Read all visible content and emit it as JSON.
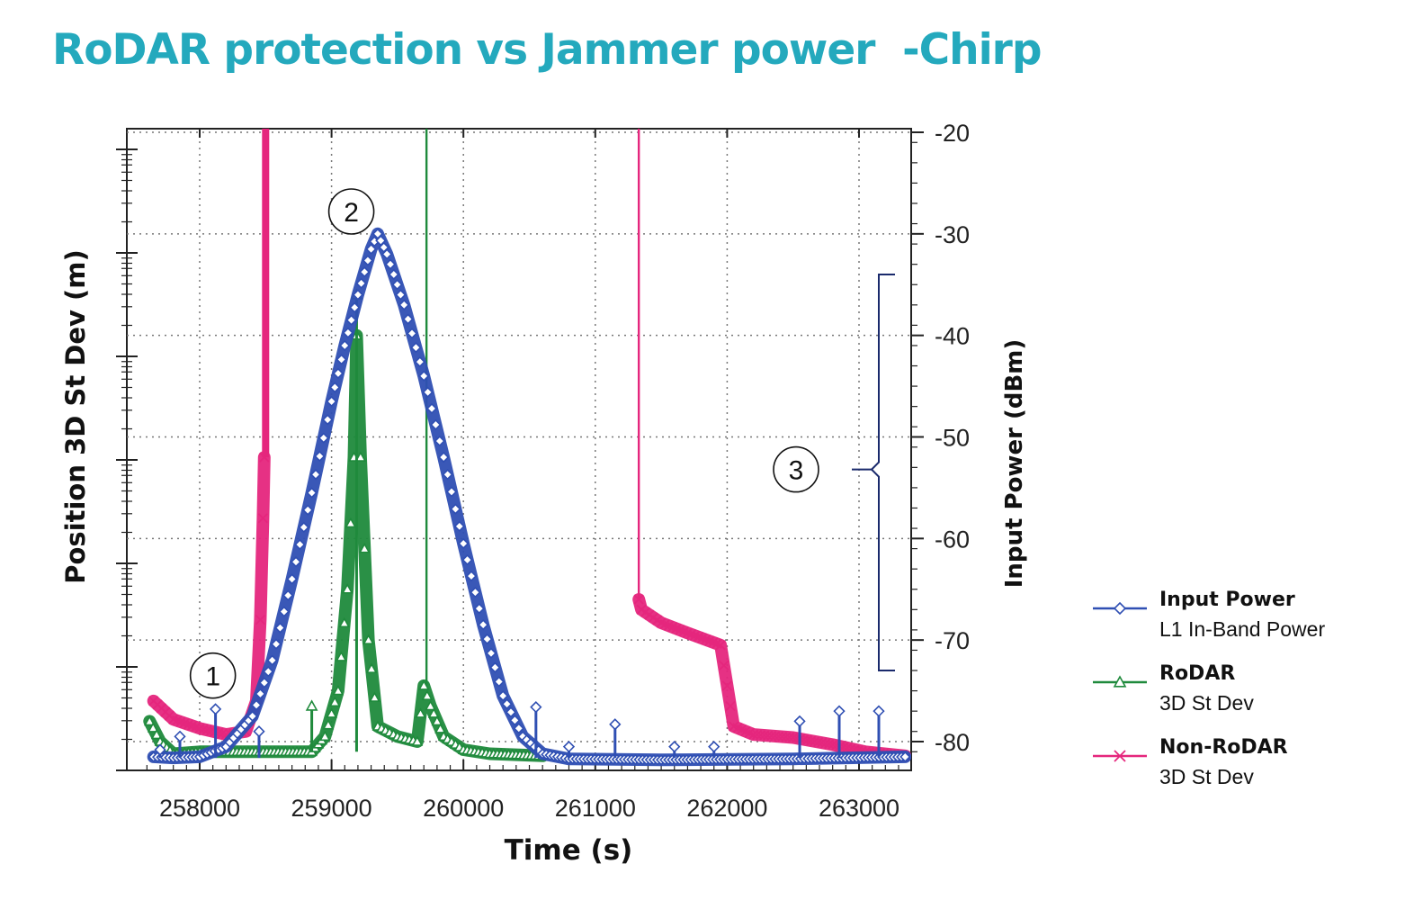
{
  "title": "RoDAR protection vs Jammer power  -Chirp",
  "colors": {
    "title": "#24a9bd",
    "input_power": "#2f4fb3",
    "rodar": "#1f8a3c",
    "non_rodar": "#e5267d",
    "annotation": "#1a2a6c"
  },
  "chart_data": {
    "type": "line",
    "xlabel": "Time (s)",
    "ylabel_left": "Position 3D St Dev (m)",
    "ylabel_right": "Input Power (dBm)",
    "xlim": [
      257600,
      263400
    ],
    "ylim_right": [
      -82,
      -20
    ],
    "x_ticks": [
      "258000",
      "259000",
      "260000",
      "261000",
      "262000",
      "263000"
    ],
    "y_ticks_right": [
      "-20",
      "-30",
      "-40",
      "-50",
      "-60",
      "-70",
      "-80"
    ],
    "grid": true,
    "legend_position": "right",
    "series": [
      {
        "name": "Input Power",
        "subtitle": "L1 In-Band Power",
        "color": "#2f4fb3",
        "marker": "diamond",
        "axis": "right",
        "points": [
          [
            257650,
            -81.5
          ],
          [
            257800,
            -81.6
          ],
          [
            258000,
            -81.5
          ],
          [
            258200,
            -80.5
          ],
          [
            258400,
            -77.5
          ],
          [
            258550,
            -72
          ],
          [
            258700,
            -64
          ],
          [
            258850,
            -55.5
          ],
          [
            259000,
            -46.5
          ],
          [
            259100,
            -41
          ],
          [
            259200,
            -36
          ],
          [
            259300,
            -31.5
          ],
          [
            259350,
            -30
          ],
          [
            259420,
            -32
          ],
          [
            259550,
            -37
          ],
          [
            259700,
            -44
          ],
          [
            259850,
            -52
          ],
          [
            260000,
            -60.5
          ],
          [
            260150,
            -68.5
          ],
          [
            260300,
            -75.5
          ],
          [
            260450,
            -79.5
          ],
          [
            260600,
            -81.2
          ],
          [
            260800,
            -81.7
          ],
          [
            261500,
            -81.8
          ],
          [
            262500,
            -81.7
          ],
          [
            263350,
            -81.5
          ]
        ],
        "spikes": [
          [
            257700,
            -80.8
          ],
          [
            257850,
            -79.5
          ],
          [
            258120,
            -76.8
          ],
          [
            258450,
            -79
          ],
          [
            260550,
            -76.6
          ],
          [
            260800,
            -80.5
          ],
          [
            261150,
            -78.3
          ],
          [
            261600,
            -80.5
          ],
          [
            261900,
            -80.5
          ],
          [
            262550,
            -78
          ],
          [
            262850,
            -77
          ],
          [
            263150,
            -77
          ]
        ]
      },
      {
        "name": "RoDAR",
        "subtitle": "3D St Dev",
        "color": "#1f8a3c",
        "marker": "triangle",
        "axis": "left",
        "points": [
          [
            257620,
            -78
          ],
          [
            257700,
            -80
          ],
          [
            257800,
            -81.2
          ],
          [
            258000,
            -81
          ],
          [
            258850,
            -81
          ],
          [
            258950,
            -79.5
          ],
          [
            259050,
            -75
          ],
          [
            259120,
            -65
          ],
          [
            259170,
            -52
          ],
          [
            259190,
            -40
          ],
          [
            259220,
            -52
          ],
          [
            259280,
            -70
          ],
          [
            259350,
            -78.5
          ],
          [
            259500,
            -79.5
          ],
          [
            259650,
            -80
          ],
          [
            259700,
            -74.5
          ],
          [
            259750,
            -76.5
          ],
          [
            259850,
            -79.5
          ],
          [
            260000,
            -80.8
          ],
          [
            260200,
            -81.2
          ],
          [
            260600,
            -81.4
          ]
        ],
        "spikes": [
          [
            258850,
            -76.5
          ],
          [
            259190,
            -36
          ]
        ],
        "off_scale": [
          259720
        ]
      },
      {
        "name": "Non-RoDAR",
        "subtitle": "3D St Dev",
        "color": "#e5267d",
        "marker": "x",
        "axis": "left",
        "points": [
          [
            257650,
            -76
          ],
          [
            257800,
            -77.8
          ],
          [
            258000,
            -78.7
          ],
          [
            258200,
            -79.3
          ],
          [
            258350,
            -79
          ],
          [
            258430,
            -76
          ],
          [
            258460,
            -68
          ],
          [
            258480,
            -58
          ],
          [
            258490,
            -52
          ]
        ],
        "points_2": [
          [
            261330,
            -66
          ],
          [
            261350,
            -67
          ],
          [
            261500,
            -68.3
          ],
          [
            261700,
            -69.3
          ],
          [
            261950,
            -70.5
          ],
          [
            262000,
            -74.5
          ],
          [
            262050,
            -78.5
          ],
          [
            262200,
            -79.3
          ],
          [
            262500,
            -79.6
          ],
          [
            262800,
            -80.3
          ],
          [
            263050,
            -81
          ],
          [
            263350,
            -81.4
          ]
        ],
        "off_scale": [
          258500,
          261330
        ]
      }
    ]
  },
  "annotations": [
    {
      "label": "1",
      "x": 258100,
      "y": -73.5
    },
    {
      "label": "2",
      "x": 259150,
      "y": -27.8
    },
    {
      "label": "3",
      "x": 263000,
      "y": -53.2
    }
  ],
  "legend": [
    {
      "name": "Input Power",
      "sub": "L1 In-Band Power",
      "marker": "diamond",
      "color": "#2f4fb3"
    },
    {
      "name": "RoDAR",
      "sub": "3D St Dev",
      "marker": "triangle",
      "color": "#1f8a3c"
    },
    {
      "name": "Non-RoDAR",
      "sub": "3D St Dev",
      "marker": "x",
      "color": "#e5267d"
    }
  ]
}
